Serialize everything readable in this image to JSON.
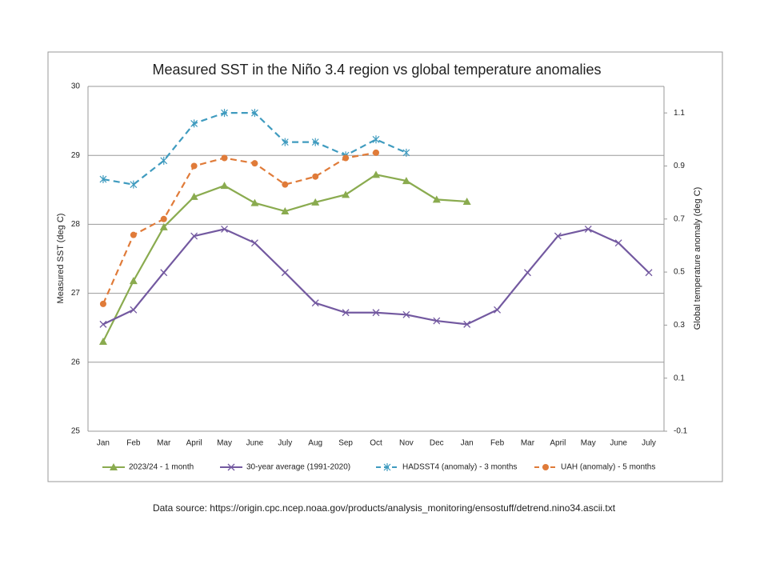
{
  "chart_data": {
    "type": "line",
    "title": "Measured SST in the Niño 3.4 region vs global temperature anomalies",
    "y_label": "Measured SST (deg C)",
    "y2_label": "Global temperature anomaly (deg C)",
    "source": "Data source: https://origin.cpc.ncep.noaa.gov/products/analysis_monitoring/ensostuff/detrend.nino34.ascii.txt",
    "categories": [
      "Jan",
      "Feb",
      "Mar",
      "April",
      "May",
      "June",
      "July",
      "Aug",
      "Sep",
      "Oct",
      "Nov",
      "Dec",
      "Jan",
      "Feb",
      "Mar",
      "April",
      "May",
      "June",
      "July"
    ],
    "ylim": [
      25,
      30
    ],
    "yticks": [
      25,
      26,
      27,
      28,
      29,
      30
    ],
    "y2lim": [
      -0.1,
      1.2
    ],
    "y2ticks": [
      -0.1,
      0.1,
      0.3,
      0.5,
      0.7,
      0.9,
      1.1
    ],
    "grid": true,
    "legend": "bottom",
    "series": [
      {
        "name": "2023/24 - 1 month",
        "color": "#8aab4f",
        "marker": "triangle",
        "dash": false,
        "values": [
          26.3,
          27.18,
          27.96,
          28.4,
          28.56,
          28.31,
          28.19,
          28.32,
          28.43,
          28.72,
          28.63,
          28.36,
          28.33,
          null,
          null,
          null,
          null,
          null,
          null
        ]
      },
      {
        "name": "30-year average (1991-2020)",
        "color": "#7359a0",
        "marker": "x",
        "dash": false,
        "values": [
          26.55,
          26.76,
          27.3,
          27.83,
          27.93,
          27.73,
          27.3,
          26.86,
          26.72,
          26.72,
          26.69,
          26.6,
          26.55,
          26.76,
          27.3,
          27.83,
          27.93,
          27.73,
          27.3
        ]
      },
      {
        "name": "HADSST4 (anomaly) - 3 months",
        "color": "#3f9bbf",
        "marker": "star",
        "dash": true,
        "axis": "y2",
        "values": [
          0.85,
          0.83,
          0.92,
          1.06,
          1.1,
          1.1,
          0.99,
          0.99,
          0.94,
          1.0,
          0.95,
          null,
          null,
          null,
          null,
          null,
          null,
          null,
          null
        ]
      },
      {
        "name": "UAH (anomaly) - 5 months",
        "color": "#e07b39",
        "marker": "circle",
        "dash": true,
        "axis": "y2",
        "values": [
          0.38,
          0.64,
          0.7,
          0.9,
          0.93,
          0.91,
          0.83,
          0.86,
          0.93,
          0.95,
          null,
          null,
          null,
          null,
          null,
          null,
          null,
          null,
          null
        ]
      }
    ]
  }
}
